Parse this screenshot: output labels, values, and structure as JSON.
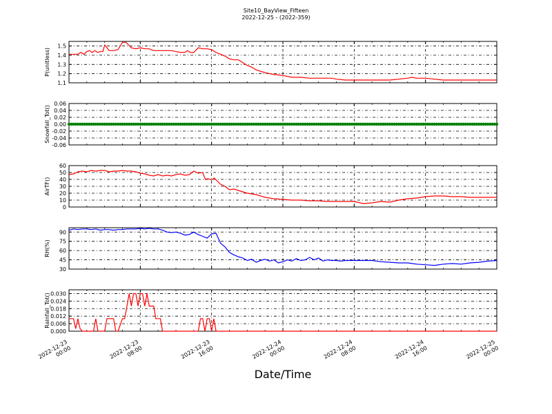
{
  "title_line1": "Site10_BayView_Fifteen",
  "title_line2": "2022-12-25 - (2022-359)",
  "xlabel": "Date/Time",
  "x_ticks": [
    "2022-12-23\n00:00",
    "2022-12-23\n08:00",
    "2022-12-23\n16:00",
    "2022-12-24\n00:00",
    "2022-12-24\n08:00",
    "2022-12-24\n16:00",
    "2022-12-25\n00:00"
  ],
  "chart_data": [
    {
      "type": "line",
      "ylabel": "P(unitless)",
      "ylim": [
        1.1,
        1.55
      ],
      "yticks": [
        "1.1",
        "1.2",
        "1.3",
        "1.4",
        "1.5"
      ],
      "x_range_hours": [
        0,
        48
      ],
      "grid": true,
      "color": "#ff0000",
      "series": [
        {
          "x": [
            0,
            1,
            1.3,
            1.7,
            2,
            2.3,
            2.6,
            2.9,
            3.2,
            3.5,
            3.8,
            4,
            4.2,
            4.5,
            5,
            5.5,
            6,
            6.4,
            7,
            7.5,
            8,
            8.5,
            9,
            9.5,
            10,
            10.5,
            11,
            11.5,
            12,
            12.5,
            13,
            13.3,
            13.6,
            14,
            14.5,
            15,
            15.5,
            16,
            16.5,
            17,
            17.5,
            18,
            18.5,
            19,
            19.5,
            20,
            20.5,
            21,
            22,
            23,
            24,
            25,
            26,
            27,
            28,
            29,
            29.5,
            30,
            31,
            32,
            33,
            34,
            35,
            36,
            37,
            38,
            38.5,
            39,
            40,
            41,
            42,
            43,
            44,
            45,
            46,
            47,
            48
          ],
          "y": [
            1.41,
            1.41,
            1.43,
            1.41,
            1.44,
            1.45,
            1.43,
            1.45,
            1.43,
            1.44,
            1.44,
            1.51,
            1.49,
            1.45,
            1.45,
            1.46,
            1.54,
            1.54,
            1.48,
            1.47,
            1.48,
            1.47,
            1.47,
            1.45,
            1.45,
            1.45,
            1.45,
            1.45,
            1.44,
            1.43,
            1.43,
            1.45,
            1.43,
            1.43,
            1.48,
            1.47,
            1.47,
            1.46,
            1.43,
            1.41,
            1.39,
            1.36,
            1.35,
            1.35,
            1.32,
            1.29,
            1.27,
            1.24,
            1.21,
            1.19,
            1.18,
            1.16,
            1.16,
            1.15,
            1.15,
            1.15,
            1.15,
            1.14,
            1.13,
            1.13,
            1.13,
            1.13,
            1.13,
            1.13,
            1.14,
            1.15,
            1.16,
            1.15,
            1.15,
            1.14,
            1.13,
            1.13,
            1.13,
            1.13,
            1.13,
            1.13,
            1.13
          ]
        }
      ]
    },
    {
      "type": "scatter",
      "ylabel": "Snowfall_Tot()",
      "ylim": [
        -0.06,
        0.06
      ],
      "yticks": [
        "-0.06",
        "-0.04",
        "-0.02",
        "0.00",
        "0.02",
        "0.04",
        "0.06"
      ],
      "x_range_hours": [
        0,
        48
      ],
      "grid": true,
      "color": "#008000",
      "series": [
        {
          "x_start": 0,
          "x_end": 48,
          "x_step": 0.25,
          "y": 0
        }
      ]
    },
    {
      "type": "line",
      "ylabel": "AirTF()",
      "ylim": [
        0,
        60
      ],
      "yticks": [
        "0",
        "10",
        "20",
        "30",
        "40",
        "50",
        "60"
      ],
      "x_range_hours": [
        0,
        48
      ],
      "grid": true,
      "color": "#ff0000",
      "series": [
        {
          "x": [
            0,
            0.5,
            1,
            1.5,
            2,
            2.5,
            3,
            3.5,
            4,
            4.5,
            5,
            5.5,
            6,
            6.5,
            7,
            7.5,
            8,
            8.5,
            9,
            9.5,
            10,
            10.5,
            11,
            11.5,
            12,
            12.5,
            13,
            13.5,
            14,
            14.5,
            15,
            15.3,
            15.6,
            16,
            16.3,
            16.6,
            17,
            17.5,
            18,
            18.5,
            19,
            19.5,
            20,
            21,
            22,
            23,
            24,
            25,
            26,
            27,
            28,
            29,
            30,
            31,
            32,
            33,
            34,
            35,
            36,
            37,
            38,
            39,
            40,
            41,
            42,
            43,
            44,
            45,
            46,
            47,
            48
          ],
          "y": [
            47,
            48,
            51,
            52,
            51,
            53,
            52,
            53,
            53,
            51,
            52,
            52,
            53,
            52,
            52,
            51,
            49,
            48,
            46,
            45,
            47,
            45,
            46,
            45,
            47,
            48,
            46,
            47,
            52,
            49,
            50,
            40,
            41,
            39,
            42,
            38,
            33,
            30,
            25,
            26,
            24,
            22,
            20,
            18,
            14,
            12,
            11,
            10,
            10,
            9,
            9,
            8,
            8,
            8,
            8,
            5,
            6,
            8,
            7,
            10,
            12,
            13,
            15,
            16,
            16,
            15,
            15,
            14,
            14,
            14,
            14
          ]
        }
      ]
    },
    {
      "type": "line",
      "ylabel": "RH(%)",
      "ylim": [
        30,
        97
      ],
      "yticks": [
        "30",
        "45",
        "60",
        "75",
        "90"
      ],
      "x_range_hours": [
        0,
        48
      ],
      "grid": true,
      "color": "#0000ff",
      "series": [
        {
          "x": [
            0,
            0.5,
            1,
            1.5,
            2,
            2.5,
            3,
            3.5,
            4,
            4.5,
            5,
            5.5,
            6,
            6.5,
            7,
            7.5,
            8,
            8.5,
            9,
            9.5,
            10,
            10.5,
            11,
            11.5,
            12,
            12.5,
            13,
            13.5,
            14,
            14.5,
            15,
            15.5,
            16,
            16.5,
            17,
            17.5,
            18,
            18.5,
            19,
            19.5,
            20,
            20.5,
            21,
            21.5,
            22,
            22.5,
            23,
            23.5,
            24,
            24.5,
            25,
            25.5,
            26,
            26.5,
            27,
            27.5,
            28,
            28.5,
            29,
            29.5,
            30,
            30.5,
            31,
            31.5,
            32,
            32.5,
            33,
            33.5,
            34,
            35,
            36,
            37,
            38,
            38.5,
            39,
            40,
            41,
            42,
            43,
            44,
            45,
            46,
            47,
            48
          ],
          "y": [
            93,
            95,
            94,
            95,
            95,
            94,
            95,
            93,
            94,
            94,
            93,
            94,
            94,
            95,
            95,
            95,
            96,
            95,
            96,
            95,
            95,
            93,
            90,
            89,
            90,
            88,
            85,
            86,
            90,
            86,
            83,
            80,
            87,
            88,
            72,
            66,
            57,
            53,
            50,
            48,
            44,
            46,
            41,
            44,
            46,
            43,
            45,
            40,
            42,
            45,
            43,
            47,
            44,
            45,
            49,
            45,
            48,
            43,
            45,
            44,
            44,
            43,
            44,
            44,
            44,
            44,
            44,
            44,
            44,
            42,
            41,
            40,
            40,
            39,
            38,
            37,
            36,
            38,
            39,
            38,
            40,
            41,
            43,
            44
          ]
        }
      ]
    },
    {
      "type": "line",
      "ylabel": "Rainfall_Tot()",
      "ylim": [
        0,
        0.033
      ],
      "yticks": [
        "0.000",
        "0.006",
        "0.012",
        "0.018",
        "0.024",
        "0.030"
      ],
      "x_range_hours": [
        0,
        48
      ],
      "grid": true,
      "color": "#ff0000",
      "series": [
        {
          "x": [
            0,
            0.5,
            0.75,
            1,
            1.25,
            1.5,
            2,
            2.5,
            2.75,
            3,
            3.25,
            3.5,
            4,
            4.25,
            4.5,
            5,
            5.25,
            5.5,
            6,
            6.25,
            6.5,
            6.75,
            7,
            7.25,
            7.5,
            7.75,
            8,
            8.25,
            8.5,
            8.75,
            9,
            9.25,
            9.5,
            9.75,
            10,
            10.25,
            10.5,
            11,
            12,
            13,
            14,
            14.5,
            14.75,
            15,
            15.25,
            15.5,
            15.75,
            16,
            16.25,
            16.5,
            17,
            18,
            20,
            24,
            28,
            32,
            36,
            40,
            44,
            48
          ],
          "y": [
            0.01,
            0.01,
            0.002,
            0.01,
            0.002,
            0,
            0,
            0,
            0,
            0.01,
            0,
            0,
            0,
            0.01,
            0.01,
            0.01,
            0,
            0,
            0.01,
            0.01,
            0.02,
            0.03,
            0.02,
            0.03,
            0.03,
            0.02,
            0.03,
            0.03,
            0.02,
            0.03,
            0.02,
            0.02,
            0.02,
            0.01,
            0.01,
            0.01,
            0,
            0,
            0,
            0,
            0,
            0,
            0.01,
            0.01,
            0,
            0.01,
            0.01,
            0,
            0.01,
            0,
            0,
            0,
            0,
            0,
            0,
            0,
            0,
            0,
            0,
            0
          ]
        }
      ]
    }
  ]
}
